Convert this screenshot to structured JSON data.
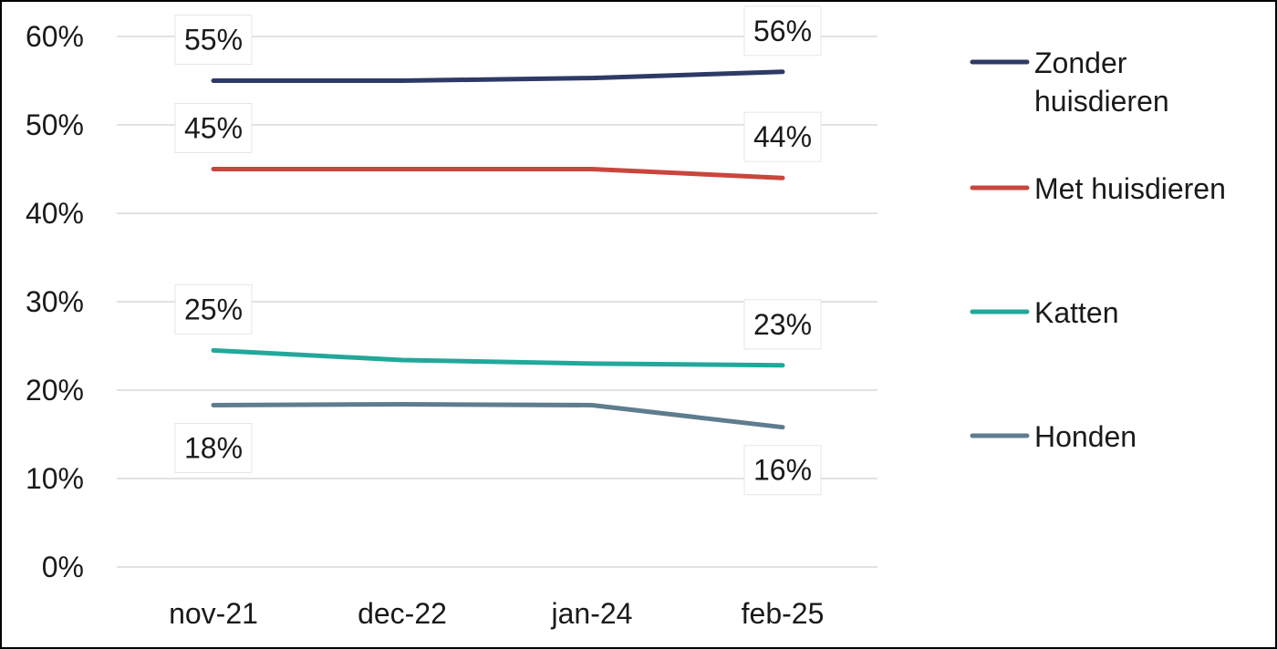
{
  "chart_data": {
    "type": "line",
    "x": [
      "nov-21",
      "dec-22",
      "jan-24",
      "feb-25"
    ],
    "ylim": [
      0,
      60
    ],
    "y_ticks": [
      "0%",
      "10%",
      "20%",
      "30%",
      "40%",
      "50%",
      "60%"
    ],
    "y_tick_values": [
      0,
      10,
      20,
      30,
      40,
      50,
      60
    ],
    "grid": true,
    "legend_position": "right",
    "series": [
      {
        "name": "Zonder huisdieren",
        "legend_lines": [
          "Zonder",
          "huisdieren"
        ],
        "color": "#2e3a66",
        "values": [
          55,
          55,
          55.3,
          56
        ],
        "labels": [
          {
            "index": 0,
            "text": "55%",
            "place": "above"
          },
          {
            "index": 3,
            "text": "56%",
            "place": "above"
          }
        ]
      },
      {
        "name": "Met huisdieren",
        "legend_lines": [
          "Met huisdieren"
        ],
        "color": "#c9463d",
        "values": [
          45,
          45,
          45,
          44
        ],
        "labels": [
          {
            "index": 0,
            "text": "45%",
            "place": "above"
          },
          {
            "index": 3,
            "text": "44%",
            "place": "above"
          }
        ]
      },
      {
        "name": "Katten",
        "legend_lines": [
          "Katten"
        ],
        "color": "#22a89a",
        "values": [
          24.5,
          23.4,
          23,
          22.8
        ],
        "labels": [
          {
            "index": 0,
            "text": "25%",
            "place": "above"
          },
          {
            "index": 3,
            "text": "23%",
            "place": "above"
          }
        ]
      },
      {
        "name": "Honden",
        "legend_lines": [
          "Honden"
        ],
        "color": "#5e7d8e",
        "values": [
          18.3,
          18.4,
          18.3,
          15.8
        ],
        "labels": [
          {
            "index": 0,
            "text": "18%",
            "place": "below"
          },
          {
            "index": 3,
            "text": "16%",
            "place": "below"
          }
        ]
      }
    ]
  }
}
